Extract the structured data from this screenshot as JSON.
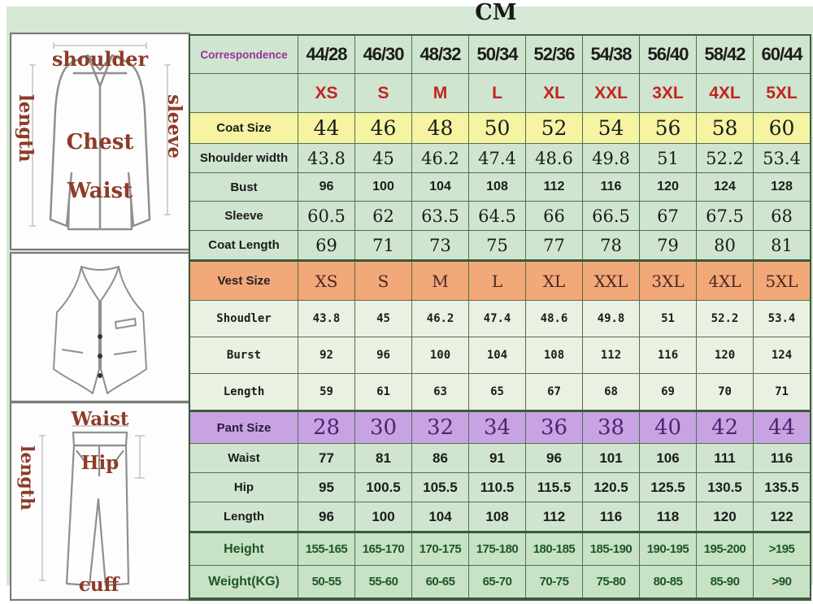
{
  "title": "CM",
  "colors": {
    "page_green": "#d5e8d5",
    "table_green": "#cfe5cf",
    "coat_size_yellow": "#f6f3a2",
    "vest_size_orange": "#f2a878",
    "pant_size_purple": "#c9a2e2",
    "vest_row_green": "#ebf1e2",
    "fit_row_green": "#c7e2c4",
    "size_text_red": "#c42323",
    "correspondence_purple": "#9b2f9b",
    "fit_text_green": "#1f5628",
    "diagram_label_red": "#8e3b28"
  },
  "diagrams": {
    "jacket": {
      "shoulder": "shoulder",
      "length": "length",
      "sleeve": "sleeve",
      "chest": "Chest",
      "waist": "Waist"
    },
    "pants": {
      "waist": "Waist",
      "length": "length",
      "hip": "Hip",
      "cuff": "cuff"
    }
  },
  "table": {
    "rows": [
      {
        "label": "Correspondence",
        "style": "header",
        "values": [
          "44/28",
          "46/30",
          "48/32",
          "50/34",
          "52/36",
          "54/38",
          "56/40",
          "58/42",
          "60/44"
        ]
      },
      {
        "label": "",
        "style": "sizes",
        "values": [
          "XS",
          "S",
          "M",
          "L",
          "XL",
          "XXL",
          "3XL",
          "4XL",
          "5XL"
        ]
      },
      {
        "label": "Coat Size",
        "style": "coatsize",
        "values": [
          "44",
          "46",
          "48",
          "50",
          "52",
          "54",
          "56",
          "58",
          "60"
        ]
      },
      {
        "label": "Shoulder width",
        "style": "coat-serif",
        "values": [
          "43.8",
          "45",
          "46.2",
          "47.4",
          "48.6",
          "49.8",
          "51",
          "52.2",
          "53.4"
        ]
      },
      {
        "label": "Bust",
        "style": "coat-bold",
        "values": [
          "96",
          "100",
          "104",
          "108",
          "112",
          "116",
          "120",
          "124",
          "128"
        ]
      },
      {
        "label": "Sleeve",
        "style": "coat-serif",
        "values": [
          "60.5",
          "62",
          "63.5",
          "64.5",
          "66",
          "66.5",
          "67",
          "67.5",
          "68"
        ]
      },
      {
        "label": "Coat Length",
        "style": "coat-serif",
        "values": [
          "69",
          "71",
          "73",
          "75",
          "77",
          "78",
          "79",
          "80",
          "81"
        ]
      },
      {
        "label": "Vest Size",
        "style": "vestsize",
        "values": [
          "XS",
          "S",
          "M",
          "L",
          "XL",
          "XXL",
          "3XL",
          "4XL",
          "5XL"
        ]
      },
      {
        "label": "Shoudler",
        "style": "vest",
        "values": [
          "43.8",
          "45",
          "46.2",
          "47.4",
          "48.6",
          "49.8",
          "51",
          "52.2",
          "53.4"
        ]
      },
      {
        "label": "Burst",
        "style": "vest",
        "values": [
          "92",
          "96",
          "100",
          "104",
          "108",
          "112",
          "116",
          "120",
          "124"
        ]
      },
      {
        "label": "Length",
        "style": "vest",
        "values": [
          "59",
          "61",
          "63",
          "65",
          "67",
          "68",
          "69",
          "70",
          "71"
        ]
      },
      {
        "label": "Pant Size",
        "style": "pantsize",
        "values": [
          "28",
          "30",
          "32",
          "34",
          "36",
          "38",
          "40",
          "42",
          "44"
        ]
      },
      {
        "label": "Waist",
        "style": "pant",
        "values": [
          "77",
          "81",
          "86",
          "91",
          "96",
          "101",
          "106",
          "111",
          "116"
        ]
      },
      {
        "label": "Hip",
        "style": "pant",
        "values": [
          "95",
          "100.5",
          "105.5",
          "110.5",
          "115.5",
          "120.5",
          "125.5",
          "130.5",
          "135.5"
        ]
      },
      {
        "label": "Length",
        "style": "pant",
        "values": [
          "96",
          "100",
          "104",
          "108",
          "112",
          "116",
          "118",
          "120",
          "122"
        ]
      },
      {
        "label": "Height",
        "style": "fit",
        "values": [
          "155-165",
          "165-170",
          "170-175",
          "175-180",
          "180-185",
          "185-190",
          "190-195",
          "195-200",
          ">195"
        ]
      },
      {
        "label": "Weight(KG)",
        "style": "fit",
        "values": [
          "50-55",
          "55-60",
          "60-65",
          "65-70",
          "70-75",
          "75-80",
          "80-85",
          "85-90",
          ">90"
        ]
      }
    ]
  }
}
